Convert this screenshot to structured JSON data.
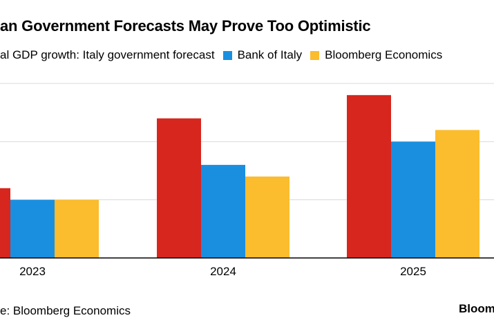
{
  "title": "an Government Forecasts May Prove Too Optimistic",
  "legend": [
    {
      "label": "al GDP growth: Italy government forecast",
      "color": "#d7261e"
    },
    {
      "label": "Bank of Italy",
      "color": "#1a8fe0"
    },
    {
      "label": "Bloomberg Economics",
      "color": "#fbbc2d"
    }
  ],
  "source": "e: Bloomberg Economics",
  "brand": "Bloom",
  "chart_data": {
    "type": "bar",
    "categories": [
      "2023",
      "2024",
      "2025"
    ],
    "series": [
      {
        "name": "al GDP growth: Italy government forecast",
        "values": [
          0.6,
          1.2,
          1.4
        ],
        "color": "#d7261e"
      },
      {
        "name": "Bank of Italy",
        "values": [
          0.5,
          0.8,
          1.0
        ],
        "color": "#1a8fe0"
      },
      {
        "name": "Bloomberg Economics",
        "values": [
          0.5,
          0.7,
          1.1
        ],
        "color": "#fbbc2d"
      }
    ],
    "ylim": [
      0,
      1.5
    ],
    "gridlines": [
      0.5,
      1.0,
      1.5
    ],
    "grid": true
  }
}
